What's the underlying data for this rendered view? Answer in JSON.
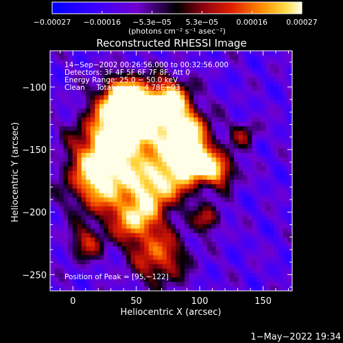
{
  "chart_data": {
    "type": "heatmap",
    "title": "Reconstructed RHESSI Image",
    "xlabel": "Heliocentric X (arcsec)",
    "ylabel": "Heliocentric Y (arcsec)",
    "xlim": [
      -18,
      173
    ],
    "ylim": [
      -263,
      -71
    ],
    "x_ticks": [
      "0",
      "50",
      "100",
      "150"
    ],
    "y_ticks": [
      "−100",
      "−150",
      "−200",
      "−250"
    ],
    "colorbar": {
      "range": [
        -0.00027,
        0.00027
      ],
      "tick_labels": [
        "−0.00027",
        "−0.00016",
        "−5.3e−05",
        "5.3e−05",
        "0.00016",
        "0.00027"
      ],
      "units_label": "(photons cm⁻² s⁻¹ asec⁻²)"
    },
    "annotations": [
      "14−Sep−2002 00:26:56.000 to 00:32:56.000",
      "Detectors: 3F 4F 5F 6F 7F 8F, Att 0",
      "Energy Range: 25.0 − 50.0 keV",
      "Clean     Total counts: 4.78E+03"
    ],
    "peak_label": "Position of Peak = [95,−122]",
    "grid": false
  },
  "footer": {
    "date": "1−May−2022 19:34"
  }
}
